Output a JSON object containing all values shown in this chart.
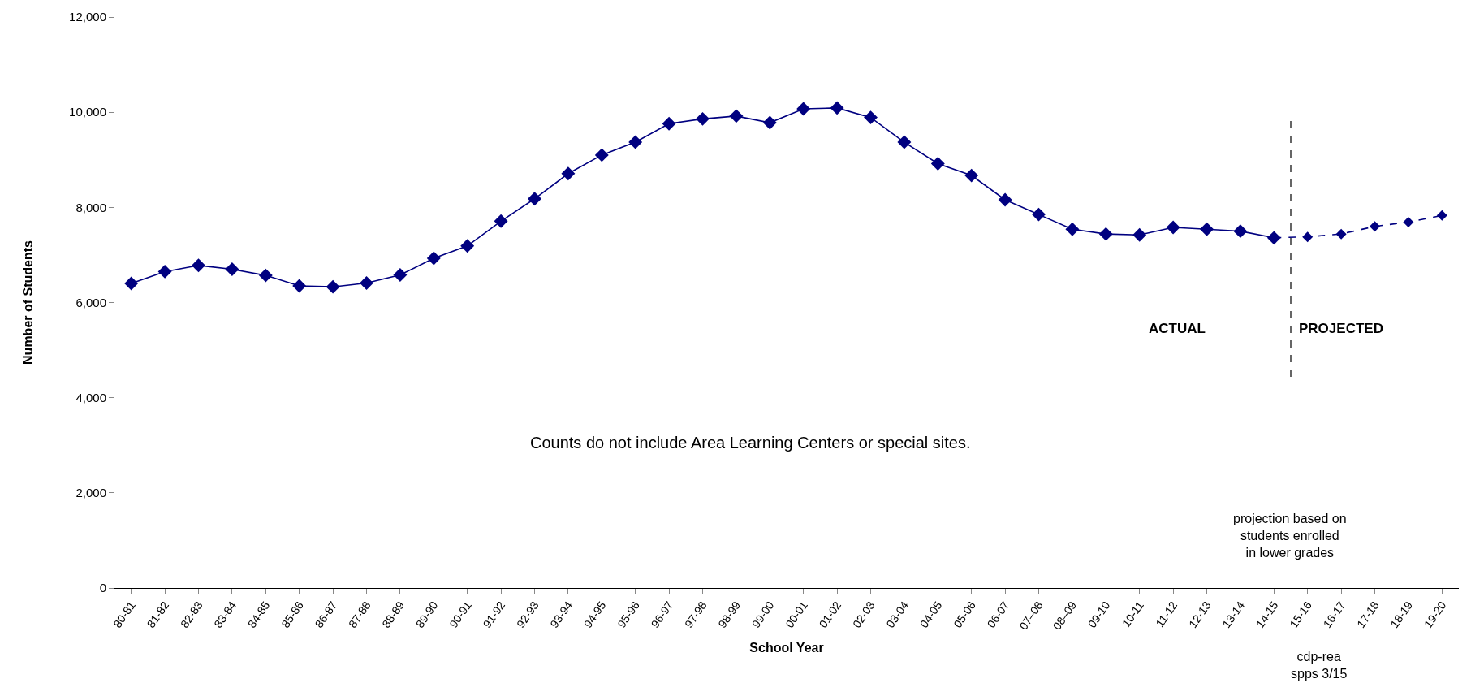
{
  "chart_data": {
    "type": "line",
    "xlabel": "School Year",
    "ylabel": "Number of Students",
    "categories": [
      "80-81",
      "81-82",
      "82-83",
      "83-84",
      "84-85",
      "85-86",
      "86-87",
      "87-88",
      "88-89",
      "89-90",
      "90-91",
      "91-92",
      "92-93",
      "93-94",
      "94-95",
      "95-96",
      "96-97",
      "97-98",
      "98-99",
      "99-00",
      "00-01",
      "01-02",
      "02-03",
      "03-04",
      "04-05",
      "05-06",
      "06-07",
      "07–08",
      "08–09",
      "09-10",
      "10-11",
      "11-12",
      "12-13",
      "13-14",
      "14-15",
      "15-16",
      "16-17",
      "17-18",
      "18-19",
      "19-20"
    ],
    "series": [
      {
        "color": "#000080",
        "line_style": "solid",
        "values": [
          6400,
          6650,
          6780,
          6700,
          6570,
          6350,
          6330,
          6410,
          6580,
          6930,
          7190,
          7710,
          8180,
          8710,
          9100,
          9370,
          9760,
          9860,
          9920,
          9780,
          10070,
          10090,
          9890,
          9370,
          8920,
          8670,
          8160,
          7850,
          7540,
          7440,
          7420,
          7580,
          7540,
          7500,
          7360,
          null,
          null,
          null,
          null,
          null
        ]
      },
      {
        "color": "#000080",
        "line_style": "dashed",
        "values": [
          null,
          null,
          null,
          null,
          null,
          null,
          null,
          null,
          null,
          null,
          null,
          null,
          null,
          null,
          null,
          null,
          null,
          null,
          null,
          null,
          null,
          null,
          null,
          null,
          null,
          null,
          null,
          null,
          null,
          null,
          null,
          null,
          null,
          null,
          7360,
          7380,
          7440,
          7600,
          7690,
          7830
        ]
      }
    ],
    "ylim": [
      0,
      12000
    ],
    "yticks": [
      0,
      {
        "value": 2000,
        "label": "2,000"
      },
      {
        "value": 4000,
        "label": "4,000"
      },
      {
        "value": 6000,
        "label": "6,000"
      },
      {
        "value": 8000,
        "label": "8,000"
      },
      {
        "value": 10000,
        "label": "10,000"
      },
      {
        "value": 12000,
        "label": "12,000"
      }
    ],
    "annotations": [
      "ACTUAL",
      "PROJECTED",
      "Counts do not include Area Learning Centers or special sites.",
      "projection based on\nstudents enrolled\nin lower grades",
      "cdp-rea\nspps 3/15"
    ],
    "marker": "diamond"
  }
}
